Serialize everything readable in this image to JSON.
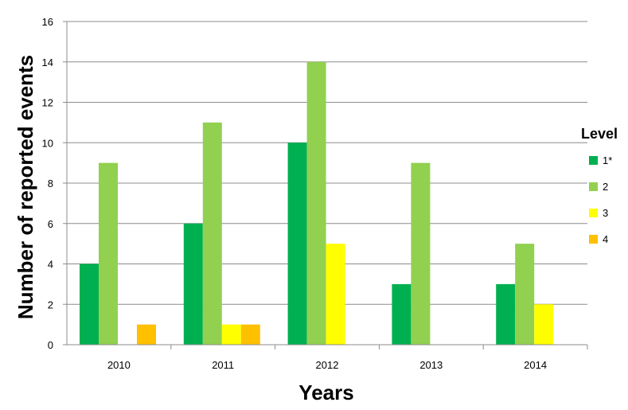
{
  "chart_data": {
    "type": "bar",
    "title": "",
    "xlabel": "Years",
    "ylabel": "Number of reported events",
    "categories": [
      "2010",
      "2011",
      "2012",
      "2013",
      "2014"
    ],
    "ylim": [
      0,
      16
    ],
    "yticks": [
      "0",
      "2",
      "4",
      "6",
      "8",
      "10",
      "12",
      "14",
      "16"
    ],
    "grid": "horizontal",
    "legend": {
      "title": "Level",
      "placement": "right"
    },
    "series": [
      {
        "name": "1*",
        "color": "#00b050",
        "values": [
          4,
          6,
          10,
          3,
          3
        ]
      },
      {
        "name": "2",
        "color": "#92d050",
        "values": [
          9,
          11,
          14,
          9,
          5
        ]
      },
      {
        "name": "3",
        "color": "#ffff00",
        "values": [
          0,
          1,
          5,
          0,
          2
        ]
      },
      {
        "name": "4",
        "color": "#ffc000",
        "values": [
          1,
          1,
          0,
          0,
          0
        ]
      }
    ]
  }
}
